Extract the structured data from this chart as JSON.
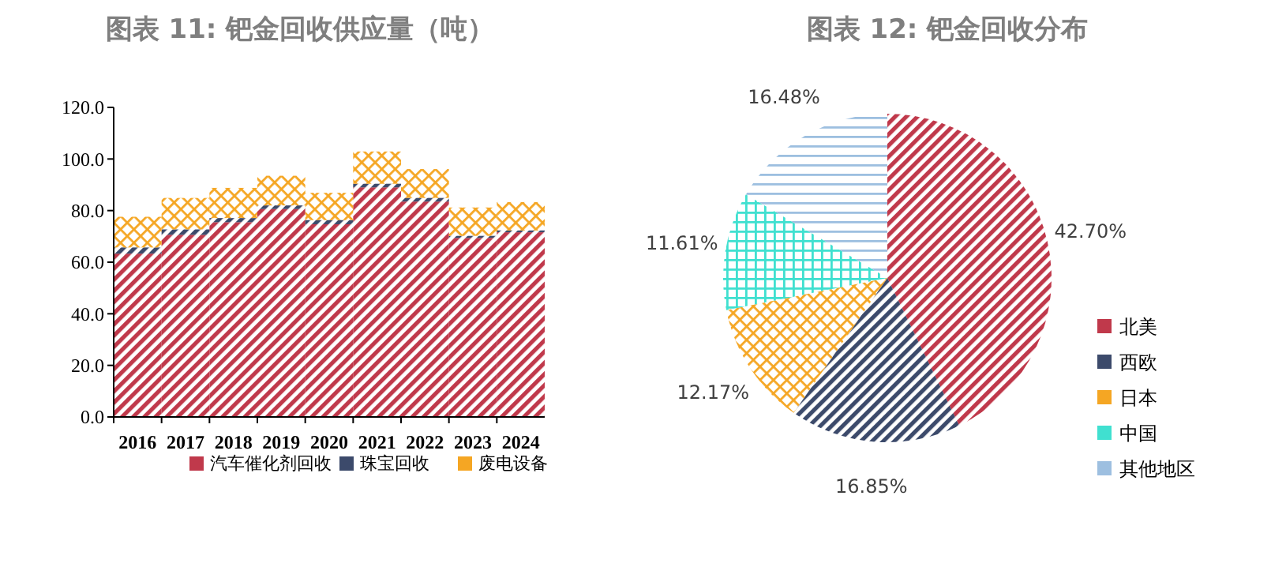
{
  "chart_data": [
    {
      "type": "bar",
      "title": "图表 11: 钯金回收供应量（吨）",
      "stacked": true,
      "legend": "bottom",
      "grid": false,
      "categories": [
        "2016",
        "2017",
        "2018",
        "2019",
        "2020",
        "2021",
        "2022",
        "2023",
        "2024"
      ],
      "ylim": [
        0,
        120
      ],
      "yticks": [
        {
          "value": 0,
          "label": "0.0"
        },
        {
          "value": 20,
          "label": "20.0"
        },
        {
          "value": 40,
          "label": "40.0"
        },
        {
          "value": 60,
          "label": "60.0"
        },
        {
          "value": 80,
          "label": "80.0"
        },
        {
          "value": 100,
          "label": "100.0"
        },
        {
          "value": 120,
          "label": "120.0"
        }
      ],
      "series": [
        {
          "name": "汽车催化剂回收",
          "color": "#c0394b",
          "values": [
            63.3,
            70.6,
            75.5,
            80.6,
            74.7,
            89.0,
            83.5,
            69.4,
            71.6
          ]
        },
        {
          "name": "珠宝回收",
          "color": "#3c4a6b",
          "values": [
            2.4,
            2.1,
            1.6,
            1.4,
            1.6,
            1.4,
            1.4,
            0.8,
            0.7
          ]
        },
        {
          "name": "废电设备",
          "color": "#f5a623",
          "values": [
            11.9,
            12.2,
            11.7,
            11.5,
            10.6,
            12.5,
            11.2,
            11.0,
            11.0
          ]
        }
      ]
    },
    {
      "type": "pie",
      "title": "图表 12: 钯金回收分布",
      "legend": "right",
      "categories": [
        "北美",
        "西欧",
        "日本",
        "中国",
        "其他地区"
      ],
      "values": [
        42.7,
        16.85,
        12.17,
        11.61,
        16.48
      ],
      "value_labels": [
        "42.70%",
        "16.85%",
        "12.17%",
        "11.61%",
        "16.48%"
      ],
      "colors": [
        "#c0394b",
        "#3c4a6b",
        "#f5a623",
        "#40e0d0",
        "#9dbfe0"
      ]
    }
  ]
}
